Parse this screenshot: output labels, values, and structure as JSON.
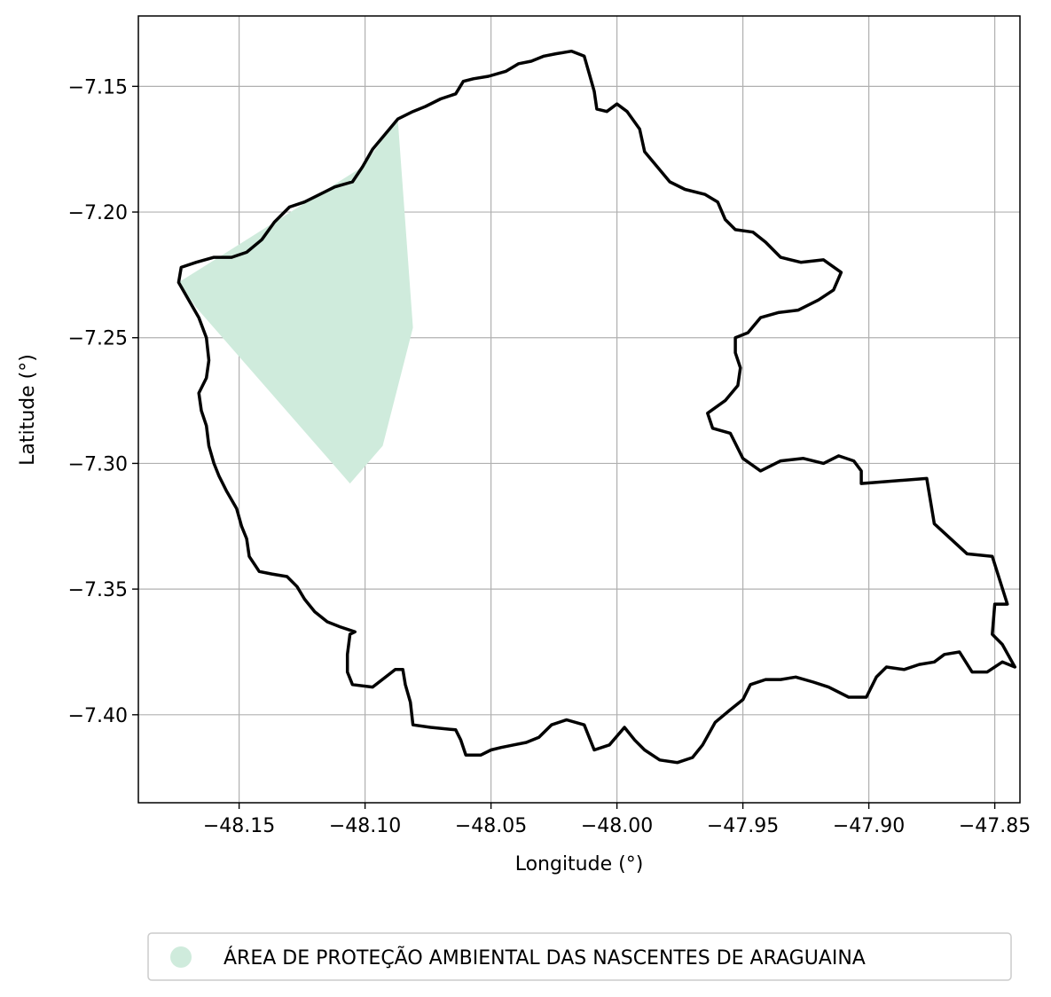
{
  "chart_data": {
    "type": "map",
    "xlabel": "Longitude (°)",
    "ylabel": "Latitude (°)",
    "xlim": [
      -48.19,
      -47.84
    ],
    "ylim": [
      -7.435,
      -7.122
    ],
    "grid": true,
    "xticks": [
      {
        "value": -48.15,
        "label": "−48.15"
      },
      {
        "value": -48.1,
        "label": "−48.10"
      },
      {
        "value": -48.05,
        "label": "−48.05"
      },
      {
        "value": -48.0,
        "label": "−48.00"
      },
      {
        "value": -47.95,
        "label": "−47.95"
      },
      {
        "value": -47.9,
        "label": "−47.90"
      },
      {
        "value": -47.85,
        "label": "−47.85"
      }
    ],
    "yticks": [
      {
        "value": -7.15,
        "label": "−7.15"
      },
      {
        "value": -7.2,
        "label": "−7.20"
      },
      {
        "value": -7.25,
        "label": "−7.25"
      },
      {
        "value": -7.3,
        "label": "−7.30"
      },
      {
        "value": -7.35,
        "label": "−7.35"
      },
      {
        "value": -7.4,
        "label": "−7.40"
      }
    ],
    "boundary": {
      "color": "#000000",
      "points": [
        [
          -48.024,
          -7.137
        ],
        [
          -48.018,
          -7.136
        ],
        [
          -48.013,
          -7.138
        ],
        [
          -48.011,
          -7.145
        ],
        [
          -48.009,
          -7.152
        ],
        [
          -48.008,
          -7.159
        ],
        [
          -48.004,
          -7.16
        ],
        [
          -48.0,
          -7.157
        ],
        [
          -47.996,
          -7.16
        ],
        [
          -47.991,
          -7.167
        ],
        [
          -47.989,
          -7.176
        ],
        [
          -47.984,
          -7.182
        ],
        [
          -47.979,
          -7.188
        ],
        [
          -47.973,
          -7.191
        ],
        [
          -47.965,
          -7.193
        ],
        [
          -47.96,
          -7.196
        ],
        [
          -47.957,
          -7.203
        ],
        [
          -47.953,
          -7.207
        ],
        [
          -47.946,
          -7.208
        ],
        [
          -47.941,
          -7.212
        ],
        [
          -47.935,
          -7.218
        ],
        [
          -47.927,
          -7.22
        ],
        [
          -47.918,
          -7.219
        ],
        [
          -47.911,
          -7.224
        ],
        [
          -47.914,
          -7.231
        ],
        [
          -47.92,
          -7.235
        ],
        [
          -47.928,
          -7.239
        ],
        [
          -47.936,
          -7.24
        ],
        [
          -47.943,
          -7.242
        ],
        [
          -47.948,
          -7.248
        ],
        [
          -47.953,
          -7.25
        ],
        [
          -47.953,
          -7.256
        ],
        [
          -47.951,
          -7.262
        ],
        [
          -47.952,
          -7.269
        ],
        [
          -47.957,
          -7.275
        ],
        [
          -47.964,
          -7.28
        ],
        [
          -47.962,
          -7.286
        ],
        [
          -47.955,
          -7.288
        ],
        [
          -47.95,
          -7.298
        ],
        [
          -47.943,
          -7.303
        ],
        [
          -47.935,
          -7.299
        ],
        [
          -47.926,
          -7.298
        ],
        [
          -47.918,
          -7.3
        ],
        [
          -47.912,
          -7.297
        ],
        [
          -47.906,
          -7.299
        ],
        [
          -47.903,
          -7.303
        ],
        [
          -47.903,
          -7.308
        ],
        [
          -47.877,
          -7.306
        ],
        [
          -47.874,
          -7.324
        ],
        [
          -47.861,
          -7.336
        ],
        [
          -47.851,
          -7.337
        ],
        [
          -47.845,
          -7.356
        ],
        [
          -47.85,
          -7.356
        ],
        [
          -47.851,
          -7.368
        ],
        [
          -47.847,
          -7.372
        ],
        [
          -47.842,
          -7.381
        ],
        [
          -47.847,
          -7.379
        ],
        [
          -47.853,
          -7.383
        ],
        [
          -47.859,
          -7.383
        ],
        [
          -47.864,
          -7.375
        ],
        [
          -47.87,
          -7.376
        ],
        [
          -47.874,
          -7.379
        ],
        [
          -47.88,
          -7.38
        ],
        [
          -47.886,
          -7.382
        ],
        [
          -47.893,
          -7.381
        ],
        [
          -47.897,
          -7.385
        ],
        [
          -47.901,
          -7.393
        ],
        [
          -47.908,
          -7.393
        ],
        [
          -47.916,
          -7.389
        ],
        [
          -47.922,
          -7.387
        ],
        [
          -47.929,
          -7.385
        ],
        [
          -47.935,
          -7.386
        ],
        [
          -47.941,
          -7.386
        ],
        [
          -47.947,
          -7.388
        ],
        [
          -47.95,
          -7.394
        ],
        [
          -47.955,
          -7.398
        ],
        [
          -47.961,
          -7.403
        ],
        [
          -47.966,
          -7.412
        ],
        [
          -47.97,
          -7.417
        ],
        [
          -47.976,
          -7.419
        ],
        [
          -47.983,
          -7.418
        ],
        [
          -47.989,
          -7.414
        ],
        [
          -47.993,
          -7.41
        ],
        [
          -47.997,
          -7.405
        ],
        [
          -48.003,
          -7.412
        ],
        [
          -48.009,
          -7.414
        ],
        [
          -48.013,
          -7.404
        ],
        [
          -48.02,
          -7.402
        ],
        [
          -48.026,
          -7.404
        ],
        [
          -48.031,
          -7.409
        ],
        [
          -48.036,
          -7.411
        ],
        [
          -48.041,
          -7.412
        ],
        [
          -48.046,
          -7.413
        ],
        [
          -48.05,
          -7.414
        ],
        [
          -48.054,
          -7.416
        ],
        [
          -48.06,
          -7.416
        ],
        [
          -48.062,
          -7.41
        ],
        [
          -48.064,
          -7.406
        ],
        [
          -48.074,
          -7.405
        ],
        [
          -48.081,
          -7.404
        ],
        [
          -48.082,
          -7.395
        ],
        [
          -48.084,
          -7.388
        ],
        [
          -48.085,
          -7.382
        ],
        [
          -48.088,
          -7.382
        ],
        [
          -48.097,
          -7.389
        ],
        [
          -48.105,
          -7.388
        ],
        [
          -48.107,
          -7.383
        ],
        [
          -48.107,
          -7.376
        ],
        [
          -48.106,
          -7.368
        ],
        [
          -48.104,
          -7.367
        ],
        [
          -48.11,
          -7.365
        ],
        [
          -48.115,
          -7.363
        ],
        [
          -48.12,
          -7.359
        ],
        [
          -48.124,
          -7.354
        ],
        [
          -48.127,
          -7.349
        ],
        [
          -48.131,
          -7.345
        ],
        [
          -48.137,
          -7.344
        ],
        [
          -48.142,
          -7.343
        ],
        [
          -48.146,
          -7.337
        ],
        [
          -48.147,
          -7.33
        ],
        [
          -48.149,
          -7.325
        ],
        [
          -48.151,
          -7.318
        ],
        [
          -48.155,
          -7.311
        ],
        [
          -48.158,
          -7.305
        ],
        [
          -48.16,
          -7.3
        ],
        [
          -48.162,
          -7.293
        ],
        [
          -48.163,
          -7.285
        ],
        [
          -48.165,
          -7.279
        ],
        [
          -48.166,
          -7.272
        ],
        [
          -48.163,
          -7.266
        ],
        [
          -48.162,
          -7.259
        ],
        [
          -48.163,
          -7.25
        ],
        [
          -48.166,
          -7.242
        ],
        [
          -48.17,
          -7.235
        ],
        [
          -48.174,
          -7.228
        ],
        [
          -48.173,
          -7.222
        ],
        [
          -48.167,
          -7.22
        ],
        [
          -48.16,
          -7.218
        ],
        [
          -48.153,
          -7.218
        ],
        [
          -48.147,
          -7.216
        ],
        [
          -48.141,
          -7.211
        ],
        [
          -48.136,
          -7.204
        ],
        [
          -48.13,
          -7.198
        ],
        [
          -48.124,
          -7.196
        ],
        [
          -48.118,
          -7.193
        ],
        [
          -48.112,
          -7.19
        ],
        [
          -48.105,
          -7.188
        ],
        [
          -48.101,
          -7.182
        ],
        [
          -48.097,
          -7.175
        ],
        [
          -48.092,
          -7.169
        ],
        [
          -48.087,
          -7.163
        ],
        [
          -48.081,
          -7.16
        ],
        [
          -48.076,
          -7.158
        ],
        [
          -48.07,
          -7.155
        ],
        [
          -48.064,
          -7.153
        ],
        [
          -48.061,
          -7.148
        ],
        [
          -48.057,
          -7.147
        ],
        [
          -48.051,
          -7.146
        ],
        [
          -48.044,
          -7.144
        ],
        [
          -48.039,
          -7.141
        ],
        [
          -48.034,
          -7.14
        ],
        [
          -48.029,
          -7.138
        ]
      ]
    },
    "series": [
      {
        "name": "ÁREA DE PROTEÇÃO AMBIENTAL DAS NASCENTES DE ARAGUAINA",
        "color": "#cfebdc",
        "polygon": [
          [
            -48.087,
            -7.163
          ],
          [
            -48.081,
            -7.246
          ],
          [
            -48.093,
            -7.293
          ],
          [
            -48.106,
            -7.308
          ],
          [
            -48.167,
            -7.238
          ],
          [
            -48.174,
            -7.228
          ],
          [
            -48.101,
            -7.182
          ]
        ]
      }
    ],
    "legend": {
      "placement": "bottom-center"
    }
  }
}
